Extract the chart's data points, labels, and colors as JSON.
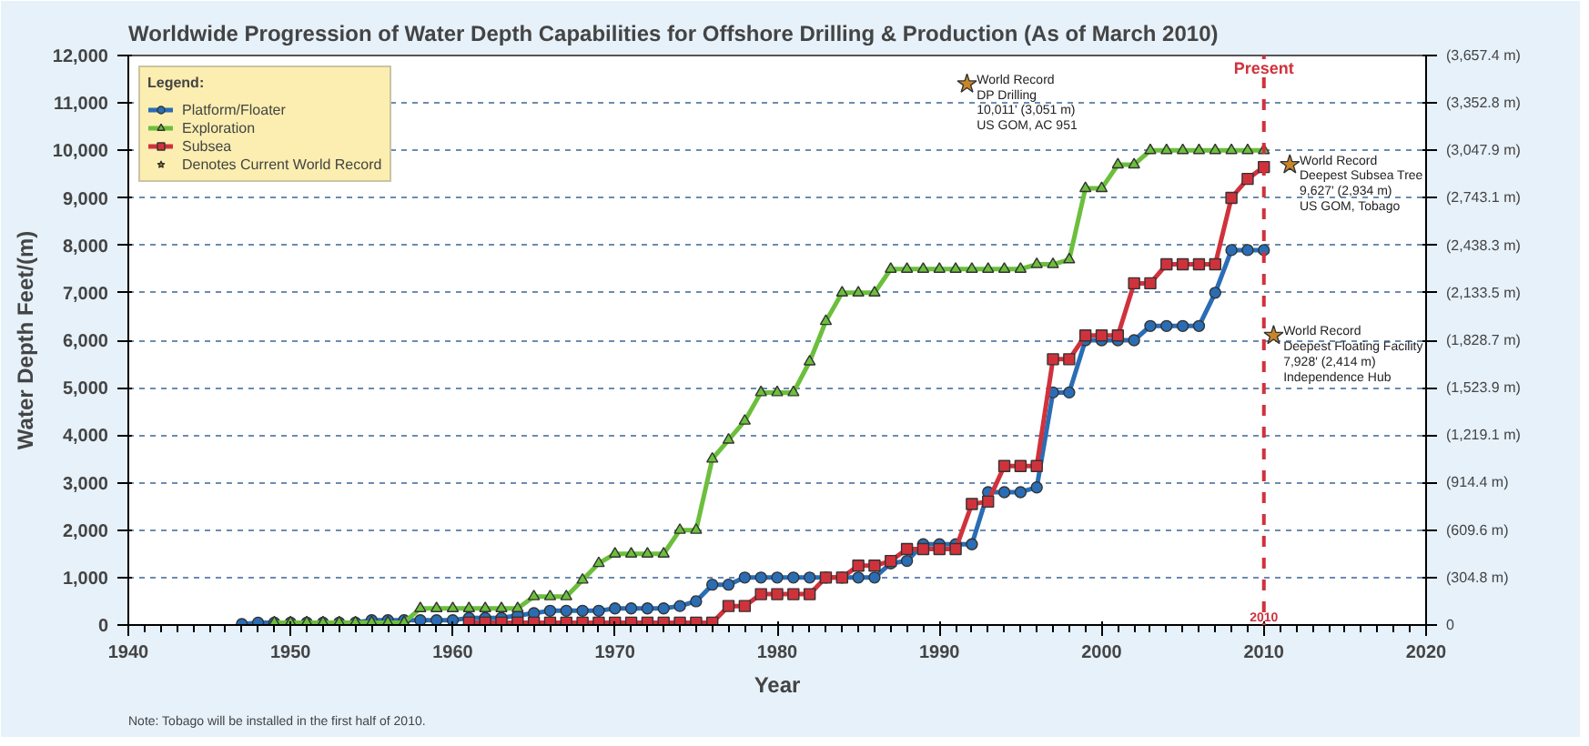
{
  "chart_data": {
    "type": "line",
    "title": "Worldwide Progression of Water Depth Capabilities for Offshore Drilling & Production (As of March 2010)",
    "xlabel": "Year",
    "ylabel": "Water Depth Feet/(m)",
    "legend_title": "Legend:",
    "xlim": [
      1940,
      2020
    ],
    "xticks": [
      1940,
      1950,
      1960,
      1970,
      1980,
      1990,
      2000,
      2010,
      2020
    ],
    "ylim": [
      0,
      12000
    ],
    "yticks": [
      0,
      {
        "value": 1000,
        "label": "1,000"
      },
      {
        "value": 2000,
        "label": "2,000"
      },
      {
        "value": 3000,
        "label": "3,000"
      },
      {
        "value": 4000,
        "label": "4,000"
      },
      {
        "value": 5000,
        "label": "5,000"
      },
      {
        "value": 6000,
        "label": "6,000"
      },
      {
        "value": 7000,
        "label": "7,000"
      },
      {
        "value": 8000,
        "label": "8,000"
      },
      {
        "value": 9000,
        "label": "9,000"
      },
      {
        "value": 10000,
        "label": "10,000"
      },
      {
        "value": 11000,
        "label": "11,000"
      },
      {
        "value": 12000,
        "label": "12,000"
      }
    ],
    "y2lim": [
      0,
      3657.4
    ],
    "y2ticks": [
      {
        "value": 0,
        "label": "0"
      },
      {
        "value": 304.8,
        "label": "(304.8 m)"
      },
      {
        "value": 609.6,
        "label": "(609.6 m)"
      },
      {
        "value": 914.4,
        "label": "(914.4 m)"
      },
      {
        "value": 1219.1,
        "label": "(1,219.1 m)"
      },
      {
        "value": 1523.9,
        "label": "(1,523.9 m)"
      },
      {
        "value": 1828.7,
        "label": "(1,828.7 m)"
      },
      {
        "value": 2133.5,
        "label": "(2,133.5 m)"
      },
      {
        "value": 2438.3,
        "label": "(2,438.3 m)"
      },
      {
        "value": 2743.1,
        "label": "(2,743.1 m)"
      },
      {
        "value": 3047.9,
        "label": "(3,047.9 m)"
      },
      {
        "value": 3352.8,
        "label": "(3,352.8 m)"
      },
      {
        "value": 3657.4,
        "label": "(3,657.4 m)"
      }
    ],
    "grid": "y",
    "legend": "top left",
    "line_style": "solid",
    "series": [
      {
        "name": "Platform/Floater",
        "color": "#2a6db5",
        "marker": "circle",
        "x": [
          1947,
          1948,
          1949,
          1950,
          1951,
          1952,
          1953,
          1954,
          1955,
          1956,
          1957,
          1958,
          1959,
          1960,
          1961,
          1962,
          1963,
          1964,
          1965,
          1966,
          1967,
          1968,
          1969,
          1970,
          1971,
          1972,
          1973,
          1974,
          1975,
          1976,
          1977,
          1978,
          1979,
          1980,
          1981,
          1982,
          1983,
          1984,
          1985,
          1986,
          1987,
          1988,
          1989,
          1990,
          1991,
          1992,
          1993,
          1994,
          1995,
          1996,
          1997,
          1998,
          1999,
          2000,
          2001,
          2002,
          2003,
          2004,
          2005,
          2006,
          2007,
          2008,
          2009,
          2010
        ],
        "values": [
          20,
          50,
          50,
          50,
          50,
          50,
          50,
          50,
          100,
          100,
          100,
          100,
          100,
          100,
          150,
          150,
          150,
          200,
          250,
          300,
          300,
          300,
          300,
          350,
          350,
          350,
          350,
          400,
          500,
          850,
          850,
          1000,
          1000,
          1000,
          1000,
          1000,
          1000,
          1000,
          1000,
          1000,
          1300,
          1350,
          1700,
          1700,
          1700,
          1700,
          2800,
          2800,
          2800,
          2900,
          4900,
          4900,
          6000,
          6000,
          6000,
          6000,
          6300,
          6300,
          6300,
          6300,
          7000,
          7900,
          7900,
          7900
        ]
      },
      {
        "name": "Exploration",
        "color": "#6cbf3c",
        "marker": "triangle",
        "x": [
          1949,
          1950,
          1951,
          1952,
          1953,
          1954,
          1955,
          1956,
          1957,
          1958,
          1959,
          1960,
          1961,
          1962,
          1963,
          1964,
          1965,
          1966,
          1967,
          1968,
          1969,
          1970,
          1971,
          1972,
          1973,
          1974,
          1975,
          1976,
          1977,
          1978,
          1979,
          1980,
          1981,
          1982,
          1983,
          1984,
          1985,
          1986,
          1987,
          1988,
          1989,
          1990,
          1991,
          1992,
          1993,
          1994,
          1995,
          1996,
          1997,
          1998,
          1999,
          2000,
          2001,
          2002,
          2003,
          2004,
          2005,
          2006,
          2007,
          2008,
          2009,
          2010
        ],
        "values": [
          50,
          50,
          50,
          50,
          50,
          50,
          50,
          50,
          50,
          350,
          350,
          350,
          350,
          350,
          350,
          350,
          600,
          600,
          600,
          950,
          1300,
          1500,
          1500,
          1500,
          1500,
          2000,
          2000,
          3500,
          3900,
          4300,
          4900,
          4900,
          4900,
          5550,
          6400,
          7000,
          7000,
          7000,
          7500,
          7500,
          7500,
          7500,
          7500,
          7500,
          7500,
          7500,
          7500,
          7600,
          7600,
          7700,
          9200,
          9200,
          9700,
          9700,
          10000,
          10000,
          10000,
          10000,
          10000,
          10000,
          10000,
          10000
        ]
      },
      {
        "name": "Subsea",
        "color": "#d0323c",
        "marker": "square",
        "x": [
          1961,
          1962,
          1963,
          1964,
          1965,
          1966,
          1967,
          1968,
          1969,
          1970,
          1971,
          1972,
          1973,
          1974,
          1975,
          1976,
          1977,
          1978,
          1979,
          1980,
          1981,
          1982,
          1983,
          1984,
          1985,
          1986,
          1987,
          1988,
          1989,
          1990,
          1991,
          1992,
          1993,
          1994,
          1995,
          1996,
          1997,
          1998,
          1999,
          2000,
          2001,
          2002,
          2003,
          2004,
          2005,
          2006,
          2007,
          2008,
          2009,
          2010
        ],
        "values": [
          50,
          50,
          50,
          50,
          50,
          50,
          50,
          50,
          50,
          50,
          50,
          50,
          50,
          50,
          50,
          50,
          400,
          400,
          650,
          650,
          650,
          650,
          1000,
          1000,
          1250,
          1250,
          1350,
          1600,
          1600,
          1600,
          1600,
          2550,
          2600,
          3350,
          3350,
          3350,
          5600,
          5600,
          6100,
          6100,
          6100,
          7200,
          7200,
          7600,
          7600,
          7600,
          7600,
          9000,
          9400,
          9650
        ]
      },
      {
        "name": "Denotes Current World Record",
        "type": "scatter",
        "color": "#c8862a",
        "marker": "star",
        "x": [
          1991.7,
          2011.6,
          2010.6
        ],
        "values": [
          11400,
          9700,
          6100
        ]
      }
    ],
    "ref_lines": [
      {
        "axis": "x",
        "value": 2010,
        "label": "Present",
        "color": "#d0323c",
        "line_style": "dashed"
      }
    ],
    "annotations": [
      {
        "text": "World Record\nDP Drilling\n10,011' (3,051 m)\nUS GOM, AC 951",
        "x": 1992.3,
        "y": 11600
      },
      {
        "text": "World Record\nDeepest Subsea Tree\n9,627' (2,934 m)\nUS GOM, Tobago",
        "x": 2012.2,
        "y": 9900
      },
      {
        "text": "World Record\nDeepest Floating Facility\n7,928' (2,414 m)\nIndependence Hub",
        "x": 2011.2,
        "y": 6300
      },
      {
        "text": "2010",
        "x": 2010,
        "y": 0
      },
      "Note: Tobago will be installed in the first half of 2010."
    ]
  }
}
